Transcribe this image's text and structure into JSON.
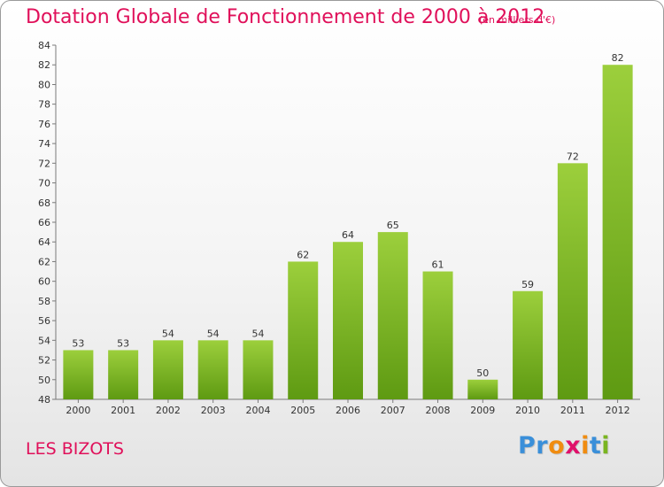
{
  "header": {
    "title": "Dotation Globale de Fonctionnement de 2000 à 2012",
    "unit": "(en milliers d'€)"
  },
  "footer": {
    "commune": "LES BIZOTS",
    "logo": "Proxiti",
    "logo_colors": [
      "#3a8fd9",
      "#3a8fd9",
      "#f08c10",
      "#e0106a",
      "#f08c10",
      "#3a8fd9",
      "#7ab520"
    ]
  },
  "colors": {
    "accent": "#e0105a",
    "bar_light": "#9ccf3c",
    "bar_dark": "#5e9a12"
  },
  "chart_data": {
    "type": "bar",
    "categories": [
      "2000",
      "2001",
      "2002",
      "2003",
      "2004",
      "2005",
      "2006",
      "2007",
      "2008",
      "2009",
      "2010",
      "2011",
      "2012"
    ],
    "values": [
      53,
      53,
      54,
      54,
      54,
      62,
      64,
      65,
      61,
      50,
      59,
      72,
      82
    ],
    "title": "Dotation Globale de Fonctionnement de 2000 à 2012",
    "ylim": [
      48,
      84
    ],
    "yticks": [
      48,
      50,
      52,
      54,
      56,
      58,
      60,
      62,
      64,
      66,
      68,
      70,
      72,
      74,
      76,
      78,
      80,
      82,
      84
    ],
    "grid": false,
    "legend": "none"
  }
}
